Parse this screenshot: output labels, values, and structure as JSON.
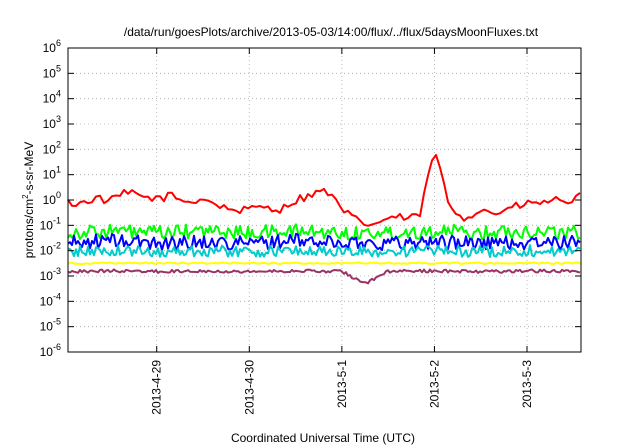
{
  "chart_data": {
    "type": "line",
    "title": "/data/run/goesPlots/archive/2013-05-03/14:00/flux/../flux/5daysMoonFluxes.txt",
    "xlabel": "Coordinated Universal Time (UTC)",
    "ylabel": "protons/cm²-s-sr-MeV",
    "ylabel_parts": {
      "pre": "protons/cm",
      "sup": "2",
      "post": "-s-sr-MeV"
    },
    "y_scale": "log",
    "ylim": [
      1e-06,
      1000000.0
    ],
    "xlim": [
      "2013-04-28T01:00",
      "2013-05-03T14:00"
    ],
    "grid": true,
    "x_ticks": [
      {
        "label": "2013-4-29",
        "value": "2013-04-29T00:00"
      },
      {
        "label": "2013-4-30",
        "value": "2013-04-30T00:00"
      },
      {
        "label": "2013-5-1",
        "value": "2013-05-01T00:00"
      },
      {
        "label": "2013-5-2",
        "value": "2013-05-02T00:00"
      },
      {
        "label": "2013-5-3",
        "value": "2013-05-03T00:00"
      }
    ],
    "y_ticks": [
      {
        "base": "10",
        "exp": "-6",
        "value": 1e-06
      },
      {
        "base": "10",
        "exp": "-5",
        "value": 1e-05
      },
      {
        "base": "10",
        "exp": "-4",
        "value": 0.0001
      },
      {
        "base": "10",
        "exp": "-3",
        "value": 0.001
      },
      {
        "base": "10",
        "exp": "-2",
        "value": 0.01
      },
      {
        "base": "10",
        "exp": "-1",
        "value": 0.1
      },
      {
        "base": "10",
        "exp": "0",
        "value": 1
      },
      {
        "base": "10",
        "exp": "1",
        "value": 10
      },
      {
        "base": "10",
        "exp": "2",
        "value": 100
      },
      {
        "base": "10",
        "exp": "3",
        "value": 1000
      },
      {
        "base": "10",
        "exp": "4",
        "value": 10000
      },
      {
        "base": "10",
        "exp": "5",
        "value": 100000
      },
      {
        "base": "10",
        "exp": "6",
        "value": 1000000
      }
    ],
    "series": [
      {
        "color": "#ff0000",
        "x": [
          "2013-04-28T01:00",
          "2013-04-28T04:00",
          "2013-04-28T08:00",
          "2013-04-28T12:00",
          "2013-04-28T16:00",
          "2013-04-28T20:00",
          "2013-04-29T00:00",
          "2013-04-29T04:00",
          "2013-04-29T08:00",
          "2013-04-29T12:00",
          "2013-04-29T16:00",
          "2013-04-29T20:00",
          "2013-04-30T00:00",
          "2013-04-30T04:00",
          "2013-04-30T08:00",
          "2013-04-30T12:00",
          "2013-04-30T16:00",
          "2013-04-30T20:00",
          "2013-05-01T00:00",
          "2013-05-01T04:00",
          "2013-05-01T08:00",
          "2013-05-01T12:00",
          "2013-05-01T16:00",
          "2013-05-01T20:00",
          "2013-05-02T00:00",
          "2013-05-02T04:00",
          "2013-05-02T08:00",
          "2013-05-02T12:00",
          "2013-05-02T16:00",
          "2013-05-02T20:00",
          "2013-05-03T00:00",
          "2013-05-03T04:00",
          "2013-05-03T08:00",
          "2013-05-03T12:00",
          "2013-05-03T14:00"
        ],
        "values": [
          0.8,
          0.7,
          1.2,
          0.9,
          2,
          1.4,
          1.1,
          1.5,
          0.8,
          1.2,
          0.6,
          0.4,
          0.4,
          0.6,
          0.4,
          1,
          1.6,
          2.5,
          0.4,
          0.15,
          0.1,
          0.2,
          0.2,
          0.2,
          100,
          0.5,
          0.2,
          0.4,
          0.3,
          0.5,
          0.7,
          0.8,
          1,
          0.9,
          1.5
        ]
      },
      {
        "color": "#00ff00",
        "x": [
          "2013-04-28T01:00",
          "2013-04-28T12:00",
          "2013-04-29T00:00",
          "2013-04-29T12:00",
          "2013-04-30T00:00",
          "2013-04-30T12:00",
          "2013-05-01T00:00",
          "2013-05-01T12:00",
          "2013-05-02T00:00",
          "2013-05-02T12:00",
          "2013-05-03T00:00",
          "2013-05-03T14:00"
        ],
        "values": [
          0.05,
          0.06,
          0.05,
          0.06,
          0.05,
          0.06,
          0.05,
          0.05,
          0.06,
          0.05,
          0.06,
          0.05
        ]
      },
      {
        "color": "#0000ff",
        "x": [
          "2013-04-28T01:00",
          "2013-04-28T12:00",
          "2013-04-29T00:00",
          "2013-04-29T12:00",
          "2013-04-30T00:00",
          "2013-04-30T12:00",
          "2013-05-01T00:00",
          "2013-05-01T12:00",
          "2013-05-02T00:00",
          "2013-05-02T12:00",
          "2013-05-03T00:00",
          "2013-05-03T14:00"
        ],
        "values": [
          0.02,
          0.025,
          0.02,
          0.022,
          0.02,
          0.025,
          0.02,
          0.02,
          0.022,
          0.02,
          0.02,
          0.02
        ]
      },
      {
        "color": "#00cccc",
        "x": [
          "2013-04-28T01:00",
          "2013-04-28T12:00",
          "2013-04-29T00:00",
          "2013-04-29T12:00",
          "2013-04-30T00:00",
          "2013-04-30T12:00",
          "2013-05-01T00:00",
          "2013-05-01T12:00",
          "2013-05-02T00:00",
          "2013-05-02T12:00",
          "2013-05-03T00:00",
          "2013-05-03T14:00"
        ],
        "values": [
          0.009,
          0.01,
          0.009,
          0.01,
          0.009,
          0.01,
          0.009,
          0.009,
          0.01,
          0.009,
          0.01,
          0.009
        ]
      },
      {
        "color": "#ffff00",
        "x": [
          "2013-04-28T01:00",
          "2013-04-28T12:00",
          "2013-04-29T00:00",
          "2013-04-29T12:00",
          "2013-04-30T00:00",
          "2013-04-30T12:00",
          "2013-05-01T00:00",
          "2013-05-01T12:00",
          "2013-05-02T00:00",
          "2013-05-02T12:00",
          "2013-05-03T00:00",
          "2013-05-03T14:00"
        ],
        "values": [
          0.0032,
          0.0032,
          0.0032,
          0.0032,
          0.0032,
          0.0032,
          0.0032,
          0.0032,
          0.0032,
          0.0032,
          0.0032,
          0.0032
        ]
      },
      {
        "color": "#993366",
        "x": [
          "2013-04-28T01:00",
          "2013-04-28T12:00",
          "2013-04-29T00:00",
          "2013-04-29T12:00",
          "2013-04-30T00:00",
          "2013-04-30T12:00",
          "2013-05-01T00:00",
          "2013-05-01T06:00",
          "2013-05-01T12:00",
          "2013-05-02T00:00",
          "2013-05-02T12:00",
          "2013-05-03T00:00",
          "2013-05-03T14:00"
        ],
        "values": [
          0.0015,
          0.0016,
          0.0015,
          0.0016,
          0.0015,
          0.0016,
          0.0015,
          0.0005,
          0.0015,
          0.0016,
          0.0015,
          0.0016,
          0.0015
        ]
      }
    ]
  }
}
